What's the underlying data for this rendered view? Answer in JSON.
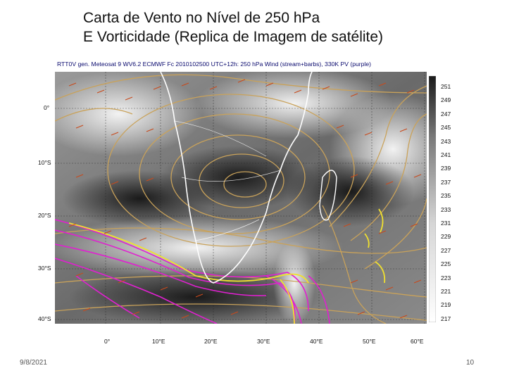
{
  "slide": {
    "title_line1": "Carta de Vento no Nível de 250 hPa",
    "title_line2": "E Vorticidade (Replica de Imagem de satélite)",
    "date": "9/8/2021",
    "page_number": "10"
  },
  "figure": {
    "header": "RTT0V gen. Meteosat 9 WV6.2 ECMWF Fc 2010102500 UTC+12h: 250 hPa Wind (stream+barbs), 330K PV (purple)",
    "lat_labels": [
      "0°",
      "10°S",
      "20°S",
      "30°S",
      "40°S"
    ],
    "lon_labels": [
      "0°",
      "10°E",
      "20°E",
      "30°E",
      "40°E",
      "50°E",
      "60°E"
    ],
    "colorbar_labels": [
      "251",
      "249",
      "247",
      "245",
      "243",
      "241",
      "239",
      "237",
      "235",
      "233",
      "231",
      "229",
      "227",
      "225",
      "223",
      "221",
      "219",
      "217"
    ],
    "colors": {
      "streamline": "#c9a25a",
      "pv_contour": "#e020d0",
      "jet": "#f0e030",
      "barb": "#c84a1c",
      "coast": "#ffffff"
    }
  }
}
